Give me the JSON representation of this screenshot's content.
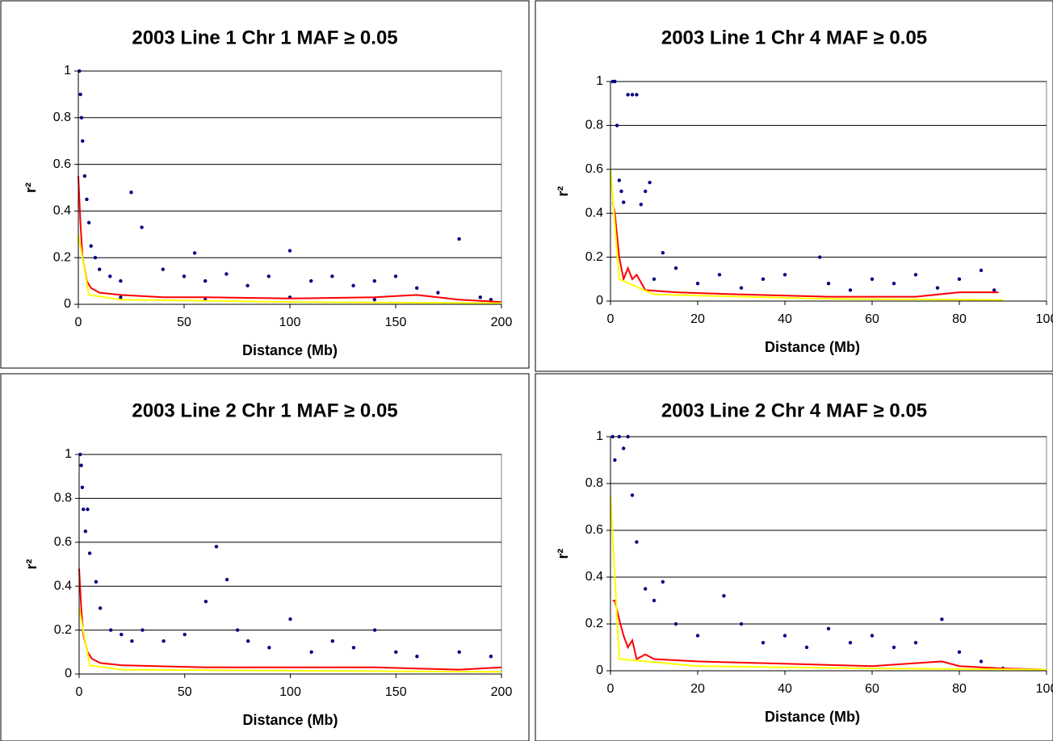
{
  "chart_data": [
    {
      "type": "scatter",
      "title": "2003 Line 1 Chr 1 MAF ≥ 0.05",
      "x_label": "Distance (Mb)",
      "y_label": "r²",
      "xlim": [
        0,
        200
      ],
      "xticks": [
        0,
        50,
        100,
        150,
        200
      ],
      "ylim": [
        0,
        1
      ],
      "yticks": [
        0,
        0.2,
        0.4,
        0.6,
        0.8,
        1
      ],
      "grid": true,
      "series": [
        {
          "kind": "points",
          "color": "#000080",
          "x": [
            0.5,
            1,
            1.5,
            2,
            3,
            4,
            5,
            6,
            8,
            10,
            15,
            20,
            25,
            30,
            40,
            50,
            55,
            60,
            70,
            80,
            90,
            100,
            110,
            120,
            130,
            140,
            150,
            160,
            170,
            180,
            190,
            195,
            20,
            60,
            100,
            140
          ],
          "values": [
            1,
            0.9,
            0.8,
            0.7,
            0.55,
            0.45,
            0.35,
            0.25,
            0.2,
            0.15,
            0.12,
            0.1,
            0.48,
            0.33,
            0.15,
            0.12,
            0.22,
            0.1,
            0.13,
            0.08,
            0.12,
            0.23,
            0.1,
            0.12,
            0.08,
            0.1,
            0.12,
            0.07,
            0.05,
            0.28,
            0.03,
            0.02,
            0.03,
            0.02,
            0.03,
            0.02
          ]
        },
        {
          "kind": "line",
          "color": "#ff0000",
          "x": [
            0,
            1,
            2,
            4,
            6,
            10,
            20,
            40,
            60,
            100,
            140,
            160,
            180,
            200
          ],
          "values": [
            0.55,
            0.35,
            0.2,
            0.1,
            0.07,
            0.05,
            0.04,
            0.03,
            0.03,
            0.025,
            0.03,
            0.04,
            0.02,
            0.01
          ]
        },
        {
          "kind": "line",
          "color": "#ffff00",
          "x": [
            0,
            5,
            20,
            100,
            200
          ],
          "values": [
            0.3,
            0.04,
            0.02,
            0.01,
            0.005
          ]
        }
      ]
    },
    {
      "type": "scatter",
      "title": "2003 Line 1 Chr 4 MAF ≥ 0.05",
      "x_label": "Distance (Mb)",
      "y_label": "r²",
      "xlim": [
        0,
        100
      ],
      "xticks": [
        0,
        20,
        40,
        60,
        80,
        100
      ],
      "ylim": [
        0,
        1
      ],
      "yticks": [
        0,
        0.2,
        0.4,
        0.6,
        0.8,
        1
      ],
      "grid": true,
      "series": [
        {
          "kind": "points",
          "color": "#000080",
          "x": [
            0.5,
            1,
            1.5,
            2,
            2.5,
            3,
            4,
            5,
            6,
            7,
            8,
            9,
            10,
            12,
            15,
            20,
            25,
            30,
            35,
            40,
            48,
            50,
            55,
            60,
            65,
            70,
            75,
            80,
            85,
            88
          ],
          "values": [
            1,
            1,
            0.8,
            0.55,
            0.5,
            0.45,
            0.94,
            0.94,
            0.94,
            0.44,
            0.5,
            0.54,
            0.1,
            0.22,
            0.15,
            0.08,
            0.12,
            0.06,
            0.1,
            0.12,
            0.2,
            0.08,
            0.05,
            0.1,
            0.08,
            0.12,
            0.06,
            0.1,
            0.14,
            0.05
          ]
        },
        {
          "kind": "line",
          "color": "#ff0000",
          "x": [
            0.5,
            1,
            2,
            3,
            4,
            5,
            6,
            8,
            15,
            30,
            50,
            70,
            80,
            89
          ],
          "values": [
            0.45,
            0.4,
            0.2,
            0.1,
            0.15,
            0.1,
            0.12,
            0.05,
            0.04,
            0.03,
            0.02,
            0.02,
            0.04,
            0.04
          ]
        },
        {
          "kind": "line",
          "color": "#ffff00",
          "x": [
            0,
            2,
            10,
            50,
            90
          ],
          "values": [
            0.6,
            0.1,
            0.03,
            0.01,
            0.005
          ]
        }
      ]
    },
    {
      "type": "scatter",
      "title": "2003 Line 2 Chr 1 MAF ≥ 0.05",
      "x_label": "Distance (Mb)",
      "y_label": "r²",
      "xlim": [
        0,
        200
      ],
      "xticks": [
        0,
        50,
        100,
        150,
        200
      ],
      "ylim": [
        0,
        1
      ],
      "yticks": [
        0,
        0.2,
        0.4,
        0.6,
        0.8,
        1
      ],
      "grid": true,
      "series": [
        {
          "kind": "points",
          "color": "#000080",
          "x": [
            0.5,
            1,
            1.5,
            2,
            3,
            4,
            5,
            8,
            10,
            15,
            20,
            25,
            30,
            40,
            50,
            60,
            65,
            70,
            75,
            80,
            90,
            100,
            110,
            120,
            130,
            140,
            150,
            160,
            180,
            195
          ],
          "values": [
            1,
            0.95,
            0.85,
            0.75,
            0.65,
            0.75,
            0.55,
            0.42,
            0.3,
            0.2,
            0.18,
            0.15,
            0.2,
            0.15,
            0.18,
            0.33,
            0.58,
            0.43,
            0.2,
            0.15,
            0.12,
            0.25,
            0.1,
            0.15,
            0.12,
            0.2,
            0.1,
            0.08,
            0.1,
            0.08
          ]
        },
        {
          "kind": "line",
          "color": "#ff0000",
          "x": [
            0,
            1,
            2,
            4,
            6,
            10,
            20,
            40,
            60,
            100,
            140,
            160,
            180,
            200
          ],
          "values": [
            0.48,
            0.3,
            0.18,
            0.1,
            0.07,
            0.05,
            0.04,
            0.035,
            0.03,
            0.03,
            0.03,
            0.025,
            0.02,
            0.03
          ]
        },
        {
          "kind": "line",
          "color": "#ffff00",
          "x": [
            0,
            5,
            20,
            100,
            200
          ],
          "values": [
            0.3,
            0.04,
            0.02,
            0.015,
            0.01
          ]
        }
      ]
    },
    {
      "type": "scatter",
      "title": "2003 Line 2 Chr 4 MAF ≥ 0.05",
      "x_label": "Distance (Mb)",
      "y_label": "r²",
      "xlim": [
        0,
        100
      ],
      "xticks": [
        0,
        20,
        40,
        60,
        80,
        100
      ],
      "ylim": [
        0,
        1
      ],
      "yticks": [
        0,
        0.2,
        0.4,
        0.6,
        0.8,
        1
      ],
      "grid": true,
      "series": [
        {
          "kind": "points",
          "color": "#000080",
          "x": [
            0.5,
            1,
            2,
            3,
            4,
            5,
            6,
            8,
            10,
            12,
            15,
            20,
            26,
            30,
            35,
            40,
            45,
            50,
            55,
            60,
            65,
            70,
            76,
            80,
            85,
            90
          ],
          "values": [
            1,
            0.9,
            1,
            0.95,
            1,
            0.75,
            0.55,
            0.35,
            0.3,
            0.38,
            0.2,
            0.15,
            0.32,
            0.2,
            0.12,
            0.15,
            0.1,
            0.18,
            0.12,
            0.15,
            0.1,
            0.12,
            0.22,
            0.08,
            0.04,
            0.01
          ]
        },
        {
          "kind": "line",
          "color": "#ff0000",
          "x": [
            0.5,
            1,
            2,
            3,
            4,
            5,
            6,
            8,
            10,
            20,
            40,
            60,
            76,
            80,
            90,
            100
          ],
          "values": [
            0.3,
            0.3,
            0.22,
            0.15,
            0.1,
            0.13,
            0.05,
            0.07,
            0.05,
            0.04,
            0.03,
            0.02,
            0.04,
            0.02,
            0.01,
            0.005
          ]
        },
        {
          "kind": "line",
          "color": "#ffff00",
          "x": [
            0,
            2,
            20,
            60,
            100
          ],
          "values": [
            0.75,
            0.05,
            0.02,
            0.01,
            0.005
          ]
        }
      ]
    }
  ]
}
